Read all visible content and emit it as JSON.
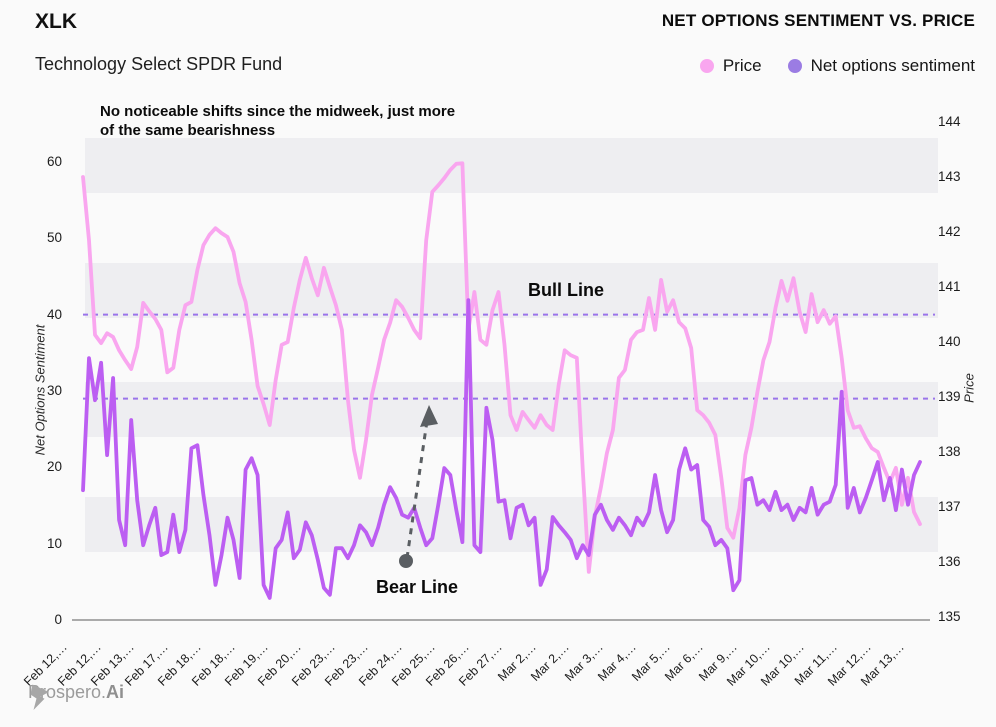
{
  "header": {
    "symbol": "XLK",
    "fund_name": "Technology Select SPDR Fund",
    "chart_title": "NET OPTIONS SENTIMENT VS. PRICE"
  },
  "legend": [
    {
      "label": "Price",
      "dot_color": "#f9a6ef"
    },
    {
      "label": "Net options sentiment",
      "dot_color": "#9b7ce3"
    }
  ],
  "annotations": {
    "note_line1": "No noticeable shifts since the midweek, just more",
    "note_line2": "of the same bearishness",
    "bull_label": "Bull Line",
    "bear_label": "Bear Line"
  },
  "axes": {
    "left_title": "Net Options Sentiment",
    "right_title": "Price",
    "left_ticks": [
      0,
      10,
      20,
      30,
      40,
      50,
      60
    ],
    "right_ticks": [
      135,
      136,
      137,
      138,
      139,
      140,
      141,
      142,
      143,
      144
    ]
  },
  "footer": {
    "logo_text": "Prospero.",
    "logo_text_bold": "Ai"
  },
  "chart_data": {
    "type": "line",
    "title": "NET OPTIONS SENTIMENT VS. PRICE",
    "x_labels": [
      "Feb 12,…",
      "Feb 12,…",
      "Feb 13,…",
      "Feb 17,…",
      "Feb 18,…",
      "Feb 18,…",
      "Feb 19,…",
      "Feb 20,…",
      "Feb 23,…",
      "Feb 23,…",
      "Feb 24,…",
      "Feb 25,…",
      "Feb 26,…",
      "Feb 27,…",
      "Mar 2,…",
      "Mar 2,…",
      "Mar 3,…",
      "Mar 4,…",
      "Mar 5,…",
      "Mar 6,…",
      "Mar 9,…",
      "Mar 10,…",
      "Mar 10,…",
      "Mar 11,…",
      "Mar 12,…",
      "Mar 13,…"
    ],
    "left_axis": {
      "title": "Net Options Sentiment",
      "range": [
        0,
        66
      ],
      "ticks": [
        0,
        10,
        20,
        30,
        40,
        50,
        60
      ]
    },
    "right_axis": {
      "title": "Price",
      "range": [
        135,
        144.1
      ],
      "ticks": [
        135,
        136,
        137,
        138,
        139,
        140,
        141,
        142,
        143,
        144
      ]
    },
    "reference_lines": [
      {
        "label": "Bull Line",
        "axis": "left",
        "value": 40,
        "color": "#9a74ea",
        "style": "dashed"
      },
      {
        "label": "Bear Line",
        "axis": "left",
        "value": 29,
        "color": "#9a74ea",
        "style": "dashed"
      }
    ],
    "series": [
      {
        "name": "Price",
        "axis": "right",
        "color": "#f9a6ef",
        "values": [
          143.0,
          141.85,
          140.13,
          139.98,
          140.16,
          140.09,
          139.85,
          139.67,
          139.51,
          139.91,
          140.71,
          140.56,
          140.42,
          140.22,
          139.45,
          139.53,
          140.22,
          140.67,
          140.73,
          141.31,
          141.76,
          141.95,
          142.07,
          141.98,
          141.91,
          141.64,
          141.07,
          140.73,
          140.04,
          139.2,
          138.87,
          138.49,
          139.31,
          139.95,
          140.0,
          140.62,
          141.13,
          141.53,
          141.16,
          140.85,
          141.35,
          141.0,
          140.67,
          140.22,
          138.95,
          138.04,
          137.53,
          138.22,
          139.04,
          139.53,
          140.04,
          140.35,
          140.76,
          140.64,
          140.44,
          140.22,
          140.07,
          141.85,
          142.73,
          142.85,
          142.98,
          143.13,
          143.24,
          143.25,
          140.22,
          140.91,
          140.04,
          139.95,
          140.58,
          140.91,
          139.95,
          138.67,
          138.4,
          138.73,
          138.58,
          138.44,
          138.67,
          138.49,
          138.4,
          139.22,
          139.85,
          139.76,
          139.71,
          137.67,
          135.82,
          136.82,
          137.36,
          137.98,
          138.4,
          139.35,
          139.49,
          140.04,
          140.18,
          140.22,
          140.8,
          140.22,
          141.13,
          140.55,
          140.76,
          140.36,
          140.25,
          139.89,
          138.76,
          138.67,
          138.53,
          138.31,
          137.53,
          136.62,
          136.44,
          136.98,
          137.95,
          138.44,
          139.09,
          139.67,
          140.0,
          140.62,
          141.11,
          140.75,
          141.16,
          140.55,
          140.18,
          140.87,
          140.36,
          140.58,
          140.33,
          140.47,
          139.71,
          138.76,
          138.44,
          138.47,
          138.25,
          138.07,
          138.0,
          137.71,
          137.45,
          137.71,
          137.04,
          137.53,
          136.91,
          136.69
        ]
      },
      {
        "name": "Net options sentiment",
        "axis": "left",
        "color": "#bc5ef2",
        "values": [
          17.0,
          34.3,
          28.8,
          33.7,
          21.6,
          31.7,
          13.1,
          9.8,
          26.2,
          15.7,
          9.8,
          12.4,
          14.7,
          8.5,
          8.9,
          13.8,
          8.9,
          11.8,
          22.5,
          22.9,
          16.4,
          11.1,
          4.6,
          8.5,
          13.4,
          10.5,
          5.5,
          19.7,
          21.2,
          19.0,
          4.6,
          2.9,
          9.4,
          10.5,
          14.1,
          8.1,
          9.2,
          12.8,
          11.1,
          7.9,
          4.2,
          3.3,
          9.4,
          9.4,
          8.1,
          9.8,
          12.4,
          11.5,
          9.8,
          12.1,
          15.1,
          17.4,
          16.0,
          13.8,
          13.4,
          14.7,
          12.1,
          9.8,
          10.7,
          15.1,
          19.9,
          19.0,
          14.4,
          10.2,
          41.9,
          9.8,
          8.9,
          27.8,
          23.6,
          15.5,
          15.7,
          10.7,
          14.7,
          15.1,
          12.4,
          13.4,
          4.6,
          6.6,
          13.5,
          12.4,
          11.5,
          10.5,
          8.1,
          9.8,
          8.5,
          13.8,
          15.1,
          13.1,
          11.8,
          13.4,
          12.4,
          11.1,
          13.4,
          12.4,
          14.1,
          19.0,
          14.4,
          11.5,
          13.1,
          19.7,
          22.5,
          19.7,
          20.3,
          13.1,
          12.2,
          9.8,
          10.5,
          9.4,
          3.9,
          5.2,
          18.3,
          18.6,
          15.1,
          15.7,
          14.4,
          16.8,
          14.4,
          15.1,
          13.1,
          14.7,
          14.1,
          17.3,
          13.8,
          15.1,
          15.5,
          17.7,
          29.9,
          14.7,
          17.3,
          14.1,
          16.0,
          18.3,
          20.7,
          15.7,
          18.6,
          14.4,
          19.7,
          15.1,
          19.0,
          20.7
        ]
      }
    ]
  }
}
